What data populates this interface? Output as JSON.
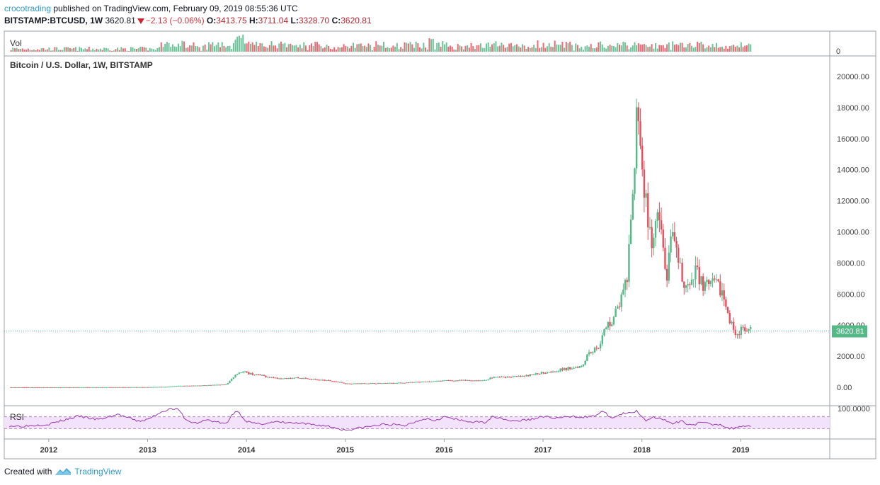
{
  "header": {
    "user": "crocotrading",
    "published": " published on TradingView.com, February 09, 2019 08:55:36 UTC",
    "symbol": "BITSTAMP:BTCUSD, 1W",
    "last": "3620.81",
    "change": "−2.13 (−0.06%)",
    "o_label": "O:",
    "o_val": "3413.75",
    "h_label": "H:",
    "h_val": "3711.04",
    "l_label": "L:",
    "l_val": "3328.70",
    "c_label": "C:",
    "c_val": "3620.81"
  },
  "panes": {
    "vol_label": "Vol",
    "vol_axis_zero": "0",
    "price_label": "Bitcoin / U.S. Dollar, 1W, BITSTAMP",
    "rsi_label": "RSI",
    "rsi_axis_top": "100.0000",
    "last_price_tag": "3620.81"
  },
  "footer": {
    "created": "Created with",
    "brand": "TradingView"
  },
  "colors": {
    "up": "#53b987",
    "down": "#eb4d5c",
    "rsi": "#9a39b0",
    "rsi_band": "#f3e2fb",
    "last_line": "#53b987",
    "brand": "#2e9ccb"
  },
  "chart_data": {
    "type": "candlestick",
    "title": "Bitcoin / U.S. Dollar, 1W, BITSTAMP",
    "y_ticks": [
      0,
      2000,
      4000,
      6000,
      8000,
      10000,
      12000,
      14000,
      16000,
      18000,
      20000
    ],
    "y_tick_labels": [
      "0.00",
      "2000.00",
      "4000.00",
      "6000.00",
      "8000.00",
      "10000.00",
      "12000.00",
      "14000.00",
      "16000.00",
      "18000.00",
      "20000.00"
    ],
    "ylim": [
      0,
      20000
    ],
    "x_tick_labels": [
      "2012",
      "2013",
      "2014",
      "2015",
      "2016",
      "2017",
      "2018",
      "2019"
    ],
    "x_tick_values": [
      2012,
      2013,
      2014,
      2015,
      2016,
      2017,
      2018,
      2019
    ],
    "xlim": [
      2011.55,
      2019.9
    ],
    "last_price": 3620.81,
    "price_series_approx": {
      "x": [
        2011.6,
        2012.0,
        2012.5,
        2013.0,
        2013.2,
        2013.3,
        2013.5,
        2013.8,
        2013.9,
        2013.95,
        2014.1,
        2014.3,
        2014.5,
        2014.9,
        2015.0,
        2015.5,
        2015.9,
        2016.0,
        2016.4,
        2016.5,
        2016.8,
        2017.0,
        2017.2,
        2017.4,
        2017.45,
        2017.55,
        2017.65,
        2017.7,
        2017.8,
        2017.85,
        2017.9,
        2017.93,
        2017.96,
        2018.0,
        2018.05,
        2018.1,
        2018.15,
        2018.2,
        2018.25,
        2018.3,
        2018.35,
        2018.4,
        2018.45,
        2018.5,
        2018.55,
        2018.6,
        2018.65,
        2018.7,
        2018.8,
        2018.88,
        2018.93,
        2018.97,
        2019.0,
        2019.05,
        2019.1
      ],
      "close": [
        6,
        5,
        10,
        13,
        35,
        90,
        110,
        180,
        900,
        1000,
        800,
        600,
        620,
        380,
        240,
        270,
        380,
        430,
        450,
        650,
        700,
        950,
        1150,
        1400,
        2200,
        2500,
        4000,
        4300,
        5800,
        7000,
        11000,
        15000,
        19000,
        14000,
        11500,
        8500,
        11000,
        9500,
        7000,
        9500,
        8500,
        7200,
        6500,
        6300,
        7800,
        6800,
        6400,
        6600,
        6400,
        4300,
        3800,
        3400,
        3700,
        3550,
        3620
      ]
    },
    "volume_axis": {
      "label": "Vol",
      "zero": 0
    },
    "rsi": {
      "label": "RSI",
      "ylim": [
        0,
        100
      ],
      "upper_band": 70,
      "lower_band": 30,
      "x": [
        2011.6,
        2011.7,
        2012.0,
        2012.3,
        2012.5,
        2012.7,
        2012.9,
        2013.0,
        2013.1,
        2013.2,
        2013.3,
        2013.4,
        2013.5,
        2013.6,
        2013.8,
        2013.85,
        2013.9,
        2014.0,
        2014.1,
        2014.3,
        2014.5,
        2014.8,
        2015.0,
        2015.2,
        2015.4,
        2015.6,
        2015.8,
        2015.9,
        2016.0,
        2016.2,
        2016.4,
        2016.5,
        2016.7,
        2016.9,
        2017.0,
        2017.1,
        2017.3,
        2017.5,
        2017.6,
        2017.7,
        2017.8,
        2017.9,
        2017.95,
        2018.05,
        2018.1,
        2018.2,
        2018.3,
        2018.4,
        2018.5,
        2018.6,
        2018.7,
        2018.8,
        2018.88,
        2018.95,
        2019.0,
        2019.1
      ],
      "values": [
        40,
        38,
        45,
        72,
        60,
        78,
        55,
        60,
        80,
        95,
        98,
        55,
        48,
        60,
        45,
        75,
        92,
        55,
        45,
        52,
        48,
        40,
        25,
        35,
        45,
        40,
        65,
        58,
        70,
        55,
        50,
        72,
        55,
        62,
        72,
        65,
        70,
        70,
        88,
        65,
        80,
        82,
        90,
        55,
        70,
        65,
        45,
        55,
        42,
        50,
        45,
        45,
        30,
        32,
        40,
        38
      ]
    }
  }
}
